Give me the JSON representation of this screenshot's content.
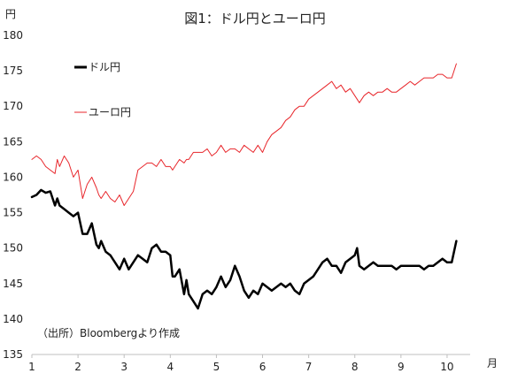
{
  "chart_data": {
    "type": "line",
    "title": "図1：ドル円とユーロ円",
    "ylabel": "円",
    "xlabel": "月",
    "ylim": [
      135,
      180
    ],
    "yticks": [
      "135",
      "140",
      "145",
      "150",
      "155",
      "160",
      "165",
      "170",
      "175",
      "180"
    ],
    "xlim": [
      1,
      10.5
    ],
    "xticks": [
      "1",
      "2",
      "3",
      "4",
      "5",
      "6",
      "7",
      "8",
      "9",
      "10"
    ],
    "annotation": "（出所）Bloombergより作成",
    "series": [
      {
        "name": "ドル円",
        "color": "#000000",
        "x": [
          1.0,
          1.1,
          1.2,
          1.3,
          1.4,
          1.5,
          1.55,
          1.6,
          1.7,
          1.8,
          1.9,
          2.0,
          2.1,
          2.2,
          2.3,
          2.4,
          2.45,
          2.5,
          2.6,
          2.7,
          2.8,
          2.9,
          3.0,
          3.1,
          3.2,
          3.3,
          3.4,
          3.5,
          3.6,
          3.7,
          3.8,
          3.9,
          4.0,
          4.05,
          4.1,
          4.2,
          4.3,
          4.35,
          4.4,
          4.5,
          4.6,
          4.7,
          4.8,
          4.9,
          5.0,
          5.1,
          5.2,
          5.3,
          5.4,
          5.5,
          5.6,
          5.7,
          5.8,
          5.9,
          6.0,
          6.1,
          6.2,
          6.3,
          6.4,
          6.5,
          6.6,
          6.7,
          6.8,
          6.9,
          7.0,
          7.1,
          7.2,
          7.3,
          7.4,
          7.5,
          7.6,
          7.7,
          7.8,
          7.9,
          8.0,
          8.05,
          8.1,
          8.2,
          8.3,
          8.4,
          8.5,
          8.6,
          8.7,
          8.8,
          8.9,
          9.0,
          9.1,
          9.2,
          9.3,
          9.4,
          9.5,
          9.6,
          9.7,
          9.8,
          9.9,
          10.0,
          10.1,
          10.2
        ],
        "values": [
          157.2,
          157.5,
          158.2,
          157.8,
          158.0,
          156.0,
          157.0,
          156.0,
          155.5,
          155.0,
          154.5,
          155.0,
          152.0,
          152.0,
          153.5,
          150.5,
          150.0,
          151.0,
          149.5,
          149.0,
          148.0,
          147.0,
          148.5,
          147.0,
          148.0,
          149.0,
          148.5,
          148.0,
          150.0,
          150.5,
          149.5,
          149.5,
          149.0,
          146.0,
          146.0,
          147.0,
          143.5,
          145.5,
          143.5,
          142.5,
          141.5,
          143.5,
          144.0,
          143.5,
          144.5,
          146.0,
          144.5,
          145.5,
          147.5,
          146.0,
          144.0,
          143.0,
          144.0,
          143.5,
          145.0,
          144.5,
          144.0,
          144.5,
          145.0,
          144.5,
          145.0,
          144.0,
          143.5,
          145.0,
          145.5,
          146.0,
          147.0,
          148.0,
          148.5,
          147.5,
          147.5,
          146.5,
          148.0,
          148.5,
          149.0,
          150.0,
          147.5,
          147.0,
          147.5,
          148.0,
          147.5,
          147.5,
          147.5,
          147.5,
          147.0,
          147.5,
          147.5,
          147.5,
          147.5,
          147.5,
          147.0,
          147.5,
          147.5,
          148.0,
          148.5,
          148.0,
          148.0,
          151.0
        ]
      },
      {
        "name": "ユーロ円",
        "color": "#e8262b",
        "x": [
          1.0,
          1.1,
          1.2,
          1.3,
          1.4,
          1.5,
          1.55,
          1.6,
          1.7,
          1.8,
          1.9,
          2.0,
          2.1,
          2.2,
          2.3,
          2.4,
          2.45,
          2.5,
          2.6,
          2.7,
          2.8,
          2.9,
          3.0,
          3.1,
          3.2,
          3.3,
          3.4,
          3.5,
          3.6,
          3.7,
          3.8,
          3.9,
          4.0,
          4.05,
          4.1,
          4.2,
          4.3,
          4.35,
          4.4,
          4.5,
          4.6,
          4.7,
          4.8,
          4.9,
          5.0,
          5.1,
          5.2,
          5.3,
          5.4,
          5.5,
          5.6,
          5.7,
          5.8,
          5.9,
          6.0,
          6.1,
          6.2,
          6.3,
          6.4,
          6.5,
          6.6,
          6.7,
          6.8,
          6.9,
          7.0,
          7.1,
          7.2,
          7.3,
          7.4,
          7.5,
          7.6,
          7.7,
          7.8,
          7.9,
          8.0,
          8.05,
          8.1,
          8.2,
          8.3,
          8.4,
          8.5,
          8.6,
          8.7,
          8.8,
          8.9,
          9.0,
          9.1,
          9.2,
          9.3,
          9.4,
          9.5,
          9.6,
          9.7,
          9.8,
          9.9,
          10.0,
          10.1,
          10.2
        ],
        "values": [
          162.5,
          163.0,
          162.5,
          161.5,
          161.0,
          160.5,
          162.5,
          161.5,
          163.0,
          162.0,
          160.0,
          161.0,
          157.0,
          159.0,
          160.0,
          158.5,
          157.5,
          157.0,
          158.0,
          157.0,
          156.5,
          157.5,
          156.0,
          157.0,
          158.0,
          161.0,
          161.5,
          162.0,
          162.0,
          161.5,
          162.5,
          161.5,
          161.5,
          161.0,
          161.5,
          162.5,
          162.0,
          162.5,
          162.5,
          163.5,
          163.5,
          163.5,
          164.0,
          163.0,
          163.5,
          164.5,
          163.5,
          164.0,
          164.0,
          163.5,
          164.5,
          164.0,
          163.5,
          164.5,
          163.5,
          165.0,
          166.0,
          166.5,
          167.0,
          168.0,
          168.5,
          169.5,
          170.0,
          170.0,
          171.0,
          171.5,
          172.0,
          172.5,
          173.0,
          173.5,
          172.5,
          173.0,
          172.0,
          172.5,
          171.5,
          171.0,
          170.5,
          171.5,
          172.0,
          171.5,
          172.0,
          172.0,
          172.5,
          172.0,
          172.0,
          172.5,
          173.0,
          173.5,
          173.0,
          173.5,
          174.0,
          174.0,
          174.0,
          174.5,
          174.5,
          174.0,
          174.0,
          176.0
        ]
      }
    ]
  }
}
